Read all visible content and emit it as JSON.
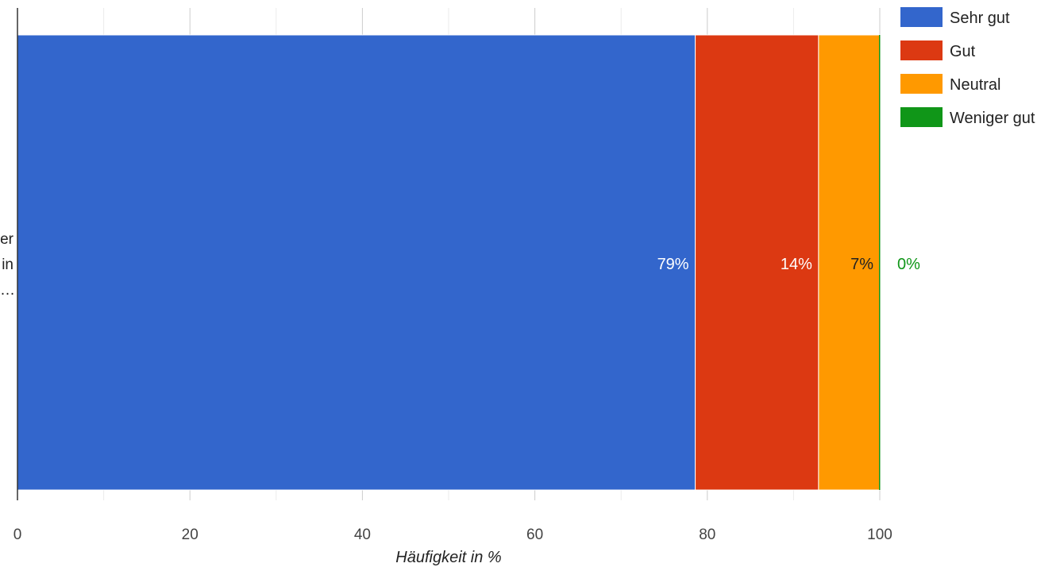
{
  "chart_data": {
    "type": "bar",
    "orientation": "horizontal",
    "stacked": true,
    "categories": [
      "er in …"
    ],
    "category_label_lines": [
      "er",
      "in",
      "…"
    ],
    "series": [
      {
        "name": "Sehr gut",
        "color": "#3366cc",
        "values": [
          78.6
        ],
        "label": "79%",
        "label_color": "#ffffff"
      },
      {
        "name": "Gut",
        "color": "#dc3912",
        "values": [
          14.3
        ],
        "label": "14%",
        "label_color": "#ffffff"
      },
      {
        "name": "Neutral",
        "color": "#ff9900",
        "values": [
          7.1
        ],
        "label": "7%",
        "label_color": "#222222"
      },
      {
        "name": "Weniger gut",
        "color": "#109618",
        "values": [
          0
        ],
        "label": "0%",
        "label_color": "#109618"
      }
    ],
    "xlabel": "Häufigkeit in %",
    "ylabel": "",
    "xlim": [
      0,
      100
    ],
    "xticks": [
      0,
      20,
      40,
      60,
      80,
      100
    ],
    "grid": true,
    "legend_position": "right"
  }
}
